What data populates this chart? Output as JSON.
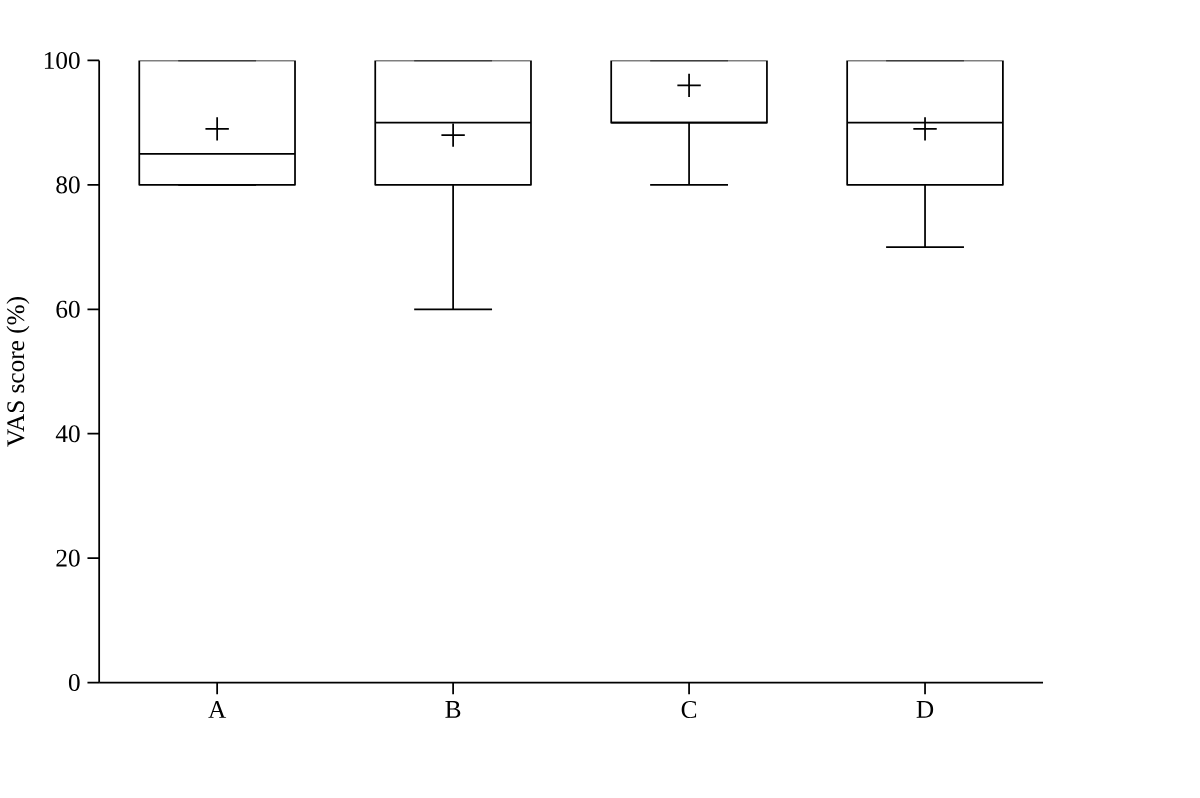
{
  "chart_data": {
    "type": "box",
    "ylabel": "VAS score (%)",
    "categories": [
      "A",
      "B",
      "C",
      "D"
    ],
    "boxes": [
      {
        "low": 80,
        "q1": 80,
        "median": 85,
        "q3": 100,
        "high": 100,
        "mean": 89
      },
      {
        "low": 60,
        "q1": 80,
        "median": 90,
        "q3": 100,
        "high": 100,
        "mean": 88
      },
      {
        "low": 80,
        "q1": 90,
        "median": 90,
        "q3": 100,
        "high": 100,
        "mean": 96
      },
      {
        "low": 70,
        "q1": 80,
        "median": 90,
        "q3": 100,
        "high": 100,
        "mean": 89
      }
    ],
    "ylim": [
      0,
      100
    ],
    "yticks": [
      0,
      20,
      40,
      60,
      80,
      100
    ]
  }
}
